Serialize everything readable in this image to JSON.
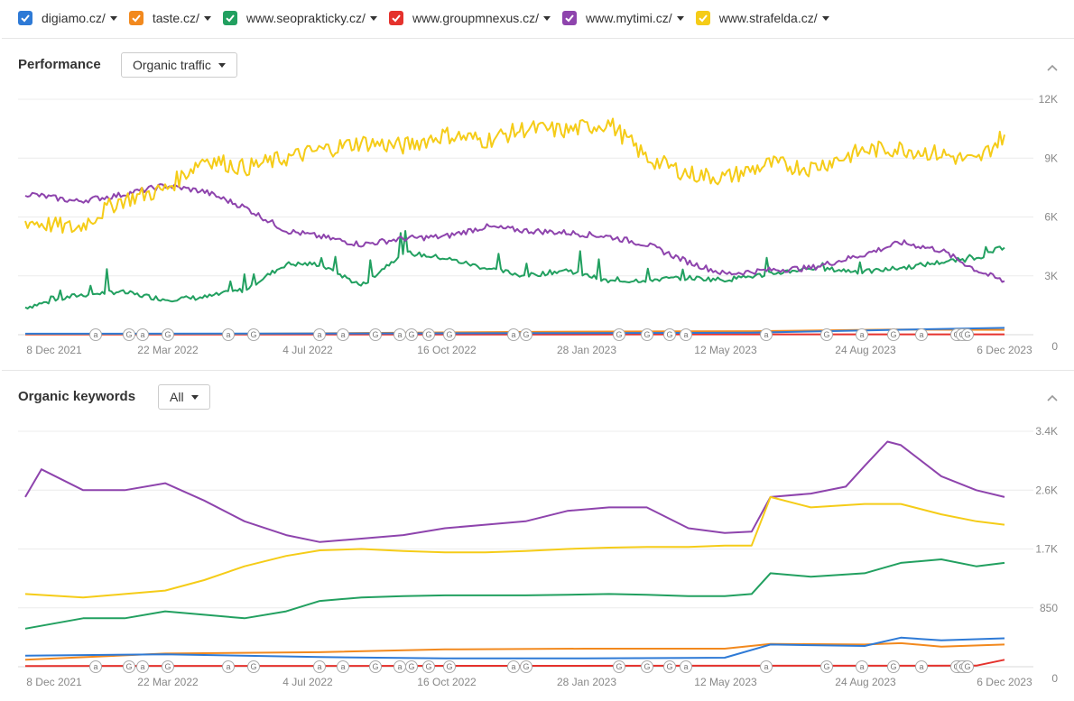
{
  "legend": [
    {
      "label": "digiamo.cz/",
      "color": "#2e7ad6"
    },
    {
      "label": "taste.cz/",
      "color": "#f2891e"
    },
    {
      "label": "www.seoprakticky.cz/",
      "color": "#22a060"
    },
    {
      "label": "www.groupmnexus.cz/",
      "color": "#e5322d"
    },
    {
      "label": "www.mytimi.cz/",
      "color": "#8e44ad"
    },
    {
      "label": "www.strafelda.cz/",
      "color": "#f5cc18"
    }
  ],
  "performance": {
    "title": "Performance",
    "dropdown": "Organic traffic"
  },
  "keywords": {
    "title": "Organic keywords",
    "dropdown": "All"
  },
  "chart_data": [
    {
      "type": "line",
      "ylabel": "Organic traffic",
      "x_tick_labels": [
        "8 Dec 2021",
        "22 Mar 2022",
        "4 Jul 2022",
        "16 Oct 2022",
        "28 Jan 2023",
        "12 May 2023",
        "24 Aug 2023",
        "6 Dec 2023"
      ],
      "y_tick_labels": [
        "0",
        "3K",
        "6K",
        "9K",
        "12K"
      ],
      "ylim": [
        0,
        12000
      ],
      "grid": true,
      "markers": [
        "a",
        "G",
        "a",
        "G",
        "a",
        "G",
        "a",
        "a",
        "G",
        "a",
        "G",
        "G",
        "G",
        "a",
        "G",
        "G",
        "G",
        "G",
        "a",
        "a",
        "G",
        "a",
        "G",
        "a",
        "G",
        "G",
        "G",
        "G",
        "G"
      ],
      "series": [
        {
          "name": "www.strafelda.cz/",
          "x": [
            "2021-12-08",
            "2022-01-15",
            "2022-02-15",
            "2022-03-22",
            "2022-04-20",
            "2022-05-20",
            "2022-06-20",
            "2022-07-15",
            "2022-08-15",
            "2022-09-15",
            "2022-10-16",
            "2022-11-15",
            "2022-12-15",
            "2023-01-15",
            "2023-02-15",
            "2023-03-15",
            "2023-04-15",
            "2023-05-12",
            "2023-06-15",
            "2023-07-15",
            "2023-08-24",
            "2023-09-20",
            "2023-10-20",
            "2023-11-15",
            "2023-12-06"
          ],
          "values": [
            5800,
            5400,
            6800,
            7400,
            9000,
            8500,
            9000,
            9400,
            9800,
            9600,
            10200,
            9900,
            10500,
            10400,
            10800,
            9000,
            8200,
            8000,
            8700,
            8500,
            9400,
            9500,
            9200,
            8800,
            10200
          ]
        },
        {
          "name": "www.mytimi.cz/",
          "x": [
            "2021-12-08",
            "2022-01-15",
            "2022-02-15",
            "2022-03-22",
            "2022-04-20",
            "2022-05-20",
            "2022-06-20",
            "2022-07-15",
            "2022-08-15",
            "2022-09-15",
            "2022-10-16",
            "2022-11-15",
            "2022-12-15",
            "2023-01-15",
            "2023-02-15",
            "2023-03-15",
            "2023-04-15",
            "2023-05-12",
            "2023-06-15",
            "2023-07-15",
            "2023-08-24",
            "2023-09-20",
            "2023-10-20",
            "2023-11-15",
            "2023-12-06"
          ],
          "values": [
            7200,
            6800,
            7100,
            7600,
            7300,
            6500,
            5300,
            5000,
            4600,
            4900,
            5000,
            5500,
            5300,
            5200,
            5000,
            4600,
            3700,
            3100,
            3300,
            3400,
            4100,
            4700,
            4300,
            3300,
            2700
          ]
        },
        {
          "name": "www.seoprakticky.cz/",
          "x": [
            "2021-12-08",
            "2022-01-15",
            "2022-02-15",
            "2022-03-22",
            "2022-04-20",
            "2022-05-20",
            "2022-06-20",
            "2022-07-15",
            "2022-08-15",
            "2022-09-15",
            "2022-10-16",
            "2022-11-15",
            "2022-12-15",
            "2023-01-15",
            "2023-02-15",
            "2023-03-15",
            "2023-04-15",
            "2023-05-12",
            "2023-06-15",
            "2023-07-15",
            "2023-08-24",
            "2023-09-20",
            "2023-10-20",
            "2023-11-15",
            "2023-12-06"
          ],
          "values": [
            1400,
            2000,
            2200,
            1800,
            1900,
            2300,
            3600,
            3600,
            2500,
            4200,
            3900,
            3400,
            3000,
            3300,
            2700,
            2800,
            2900,
            2800,
            3100,
            3400,
            3200,
            3400,
            3700,
            3900,
            4500
          ]
        },
        {
          "name": "digiamo.cz/",
          "x": [
            "2021-12-08",
            "2022-06-01",
            "2023-01-01",
            "2023-06-01",
            "2023-09-15",
            "2023-12-06"
          ],
          "values": [
            50,
            60,
            80,
            100,
            250,
            350
          ]
        },
        {
          "name": "taste.cz/",
          "x": [
            "2021-12-08",
            "2022-06-01",
            "2023-01-01",
            "2023-06-01",
            "2023-09-15",
            "2023-12-06"
          ],
          "values": [
            30,
            50,
            150,
            180,
            260,
            250
          ]
        },
        {
          "name": "www.groupmnexus.cz/",
          "x": [
            "2021-12-08",
            "2023-12-06"
          ],
          "values": [
            10,
            20
          ]
        }
      ]
    },
    {
      "type": "line",
      "ylabel": "Organic keywords",
      "x_tick_labels": [
        "8 Dec 2021",
        "22 Mar 2022",
        "4 Jul 2022",
        "16 Oct 2022",
        "28 Jan 2023",
        "12 May 2023",
        "24 Aug 2023",
        "6 Dec 2023"
      ],
      "y_tick_labels": [
        "0",
        "850",
        "1.7K",
        "2.6K",
        "3.4K"
      ],
      "ylim": [
        0,
        3400
      ],
      "grid": true,
      "markers": [
        "a",
        "G",
        "a",
        "G",
        "a",
        "G",
        "a",
        "a",
        "G",
        "a",
        "G",
        "G",
        "G",
        "a",
        "G",
        "G",
        "G",
        "G",
        "a",
        "a",
        "G",
        "a",
        "G",
        "a",
        "G",
        "G",
        "G",
        "G",
        "G"
      ],
      "series": [
        {
          "name": "www.mytimi.cz/",
          "x": [
            "2021-12-08",
            "2021-12-20",
            "2022-01-20",
            "2022-02-20",
            "2022-03-22",
            "2022-04-20",
            "2022-05-20",
            "2022-06-20",
            "2022-07-15",
            "2022-08-15",
            "2022-09-15",
            "2022-10-16",
            "2022-11-15",
            "2022-12-15",
            "2023-01-15",
            "2023-02-15",
            "2023-03-15",
            "2023-04-15",
            "2023-05-12",
            "2023-06-01",
            "2023-06-15",
            "2023-07-15",
            "2023-08-10",
            "2023-08-24",
            "2023-09-10",
            "2023-09-20",
            "2023-10-20",
            "2023-11-15",
            "2023-12-06"
          ],
          "values": [
            2450,
            2850,
            2550,
            2550,
            2650,
            2400,
            2100,
            1900,
            1800,
            1850,
            1900,
            2000,
            2050,
            2100,
            2250,
            2300,
            2300,
            2000,
            1930,
            1950,
            2450,
            2500,
            2600,
            2900,
            3250,
            3200,
            2750,
            2550,
            2450
          ]
        },
        {
          "name": "www.strafelda.cz/",
          "x": [
            "2021-12-08",
            "2022-01-20",
            "2022-02-20",
            "2022-03-22",
            "2022-04-20",
            "2022-05-20",
            "2022-06-20",
            "2022-07-15",
            "2022-08-15",
            "2022-09-15",
            "2022-10-16",
            "2022-11-15",
            "2022-12-15",
            "2023-01-15",
            "2023-02-15",
            "2023-03-15",
            "2023-04-15",
            "2023-05-12",
            "2023-06-01",
            "2023-06-15",
            "2023-07-15",
            "2023-08-24",
            "2023-09-20",
            "2023-10-20",
            "2023-11-15",
            "2023-12-06"
          ],
          "values": [
            1050,
            1000,
            1050,
            1100,
            1250,
            1450,
            1600,
            1680,
            1700,
            1670,
            1650,
            1650,
            1670,
            1700,
            1720,
            1730,
            1730,
            1750,
            1750,
            2450,
            2300,
            2350,
            2350,
            2200,
            2100,
            2050
          ]
        },
        {
          "name": "www.seoprakticky.cz/",
          "x": [
            "2021-12-08",
            "2022-01-20",
            "2022-02-20",
            "2022-03-22",
            "2022-04-20",
            "2022-05-20",
            "2022-06-20",
            "2022-07-15",
            "2022-08-15",
            "2022-09-15",
            "2022-10-16",
            "2022-11-15",
            "2022-12-15",
            "2023-01-15",
            "2023-02-15",
            "2023-03-15",
            "2023-04-15",
            "2023-05-12",
            "2023-06-01",
            "2023-06-15",
            "2023-07-15",
            "2023-08-24",
            "2023-09-20",
            "2023-10-20",
            "2023-11-15",
            "2023-12-06"
          ],
          "values": [
            550,
            700,
            700,
            800,
            750,
            700,
            800,
            950,
            1000,
            1020,
            1030,
            1030,
            1030,
            1040,
            1050,
            1040,
            1020,
            1020,
            1050,
            1350,
            1300,
            1350,
            1500,
            1550,
            1450,
            1500
          ]
        },
        {
          "name": "digiamo.cz/",
          "x": [
            "2021-12-08",
            "2022-03-22",
            "2022-07-15",
            "2022-10-16",
            "2023-01-28",
            "2023-05-12",
            "2023-06-15",
            "2023-08-24",
            "2023-09-20",
            "2023-10-20",
            "2023-12-06"
          ],
          "values": [
            160,
            180,
            140,
            120,
            120,
            130,
            320,
            300,
            420,
            380,
            410
          ]
        },
        {
          "name": "taste.cz/",
          "x": [
            "2021-12-08",
            "2022-03-22",
            "2022-07-15",
            "2022-10-16",
            "2023-01-28",
            "2023-05-12",
            "2023-06-15",
            "2023-08-24",
            "2023-09-20",
            "2023-10-20",
            "2023-12-06"
          ],
          "values": [
            100,
            190,
            210,
            250,
            260,
            260,
            330,
            320,
            340,
            290,
            320
          ]
        },
        {
          "name": "www.groupmnexus.cz/",
          "x": [
            "2021-12-08",
            "2023-11-15",
            "2023-12-06"
          ],
          "values": [
            10,
            15,
            100
          ]
        }
      ]
    }
  ]
}
